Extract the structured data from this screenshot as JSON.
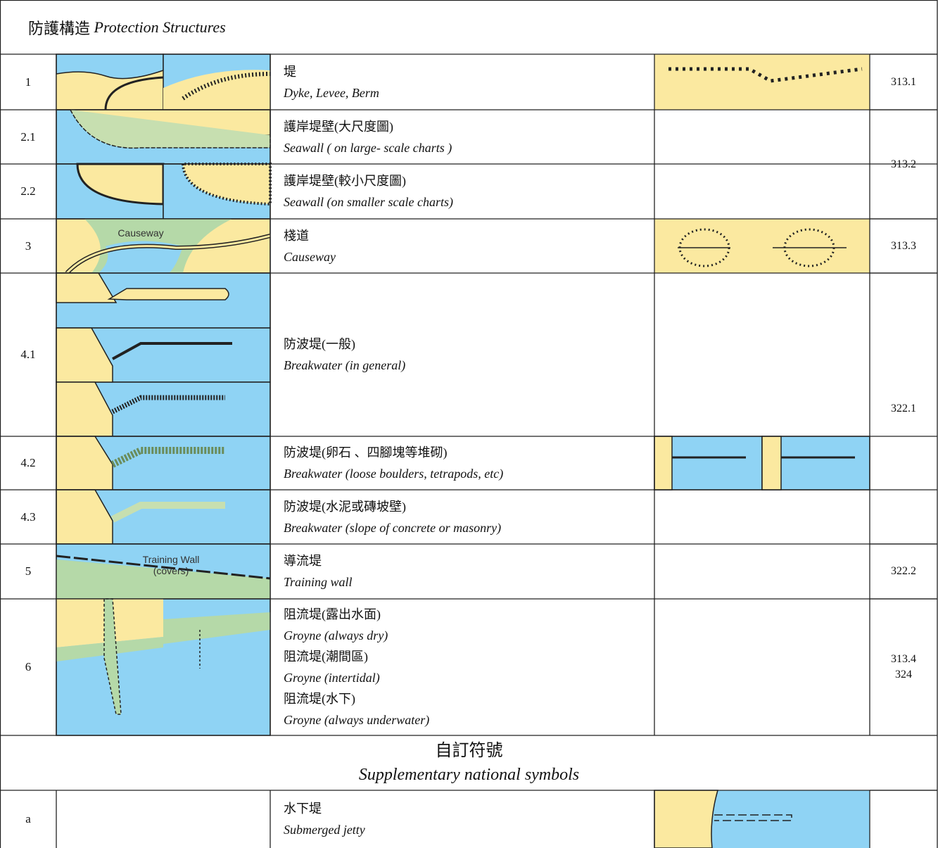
{
  "header": {
    "title_zh": "防護構造",
    "title_en": "Protection Structures"
  },
  "rows": [
    {
      "number": "1",
      "lines": [
        "堤",
        "Dyke, Levee, Berm"
      ],
      "reference": [
        "313.1"
      ]
    },
    {
      "number": "2.1",
      "lines": [
        "護岸堤壁(大尺度圖)",
        "Seawall ( on large- scale charts )"
      ],
      "reference": [
        "313.2"
      ]
    },
    {
      "number": "2.2",
      "lines": [
        "護岸堤壁(較小尺度圖)",
        "Seawall (on smaller scale charts)"
      ]
    },
    {
      "number": "3",
      "lines": [
        "棧道",
        "Causeway"
      ],
      "image_labels": [
        "Causeway"
      ],
      "reference": [
        "313.3"
      ]
    },
    {
      "number": "4.1",
      "lines": [
        "防波堤(一般)",
        "Breakwater (in general)"
      ],
      "reference": [
        "322.1"
      ]
    },
    {
      "number": "4.2",
      "lines": [
        "防波堤(卵石 、四腳塊等堆砌)",
        "Breakwater (loose boulders, tetrapods, etc)"
      ]
    },
    {
      "number": "4.3",
      "lines": [
        "防波堤(水泥或磚坡壁)",
        "Breakwater (slope of concrete or masonry)"
      ]
    },
    {
      "number": "5",
      "lines": [
        "導流堤",
        "Training wall"
      ],
      "image_labels": [
        "Training Wall",
        "(covers)"
      ],
      "reference": [
        "322.2"
      ]
    },
    {
      "number": "6",
      "lines": [
        "阻流堤(露出水面)",
        "Groyne (always dry)",
        "阻流堤(潮間區)",
        "Groyne (intertidal)",
        "阻流堤(水下)",
        "Groyne (always underwater)"
      ],
      "reference": [
        "313.4",
        "324"
      ]
    }
  ],
  "supplementary": {
    "title_zh": "自訂符號",
    "title_en": "Supplementary national symbols",
    "rows": [
      {
        "number": "a",
        "lines": [
          "水下堤",
          "Submerged jetty"
        ]
      }
    ]
  }
}
